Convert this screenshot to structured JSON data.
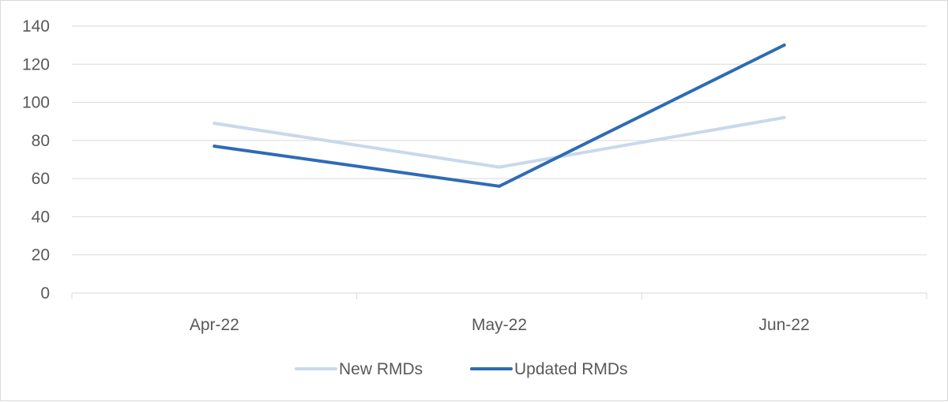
{
  "chart_data": {
    "type": "line",
    "categories": [
      "Apr-22",
      "May-22",
      "Jun-22"
    ],
    "series": [
      {
        "name": "New RMDs",
        "values": [
          89,
          66,
          92
        ],
        "color": "#c9d8ec"
      },
      {
        "name": "Updated RMDs",
        "values": [
          77,
          56,
          130
        ],
        "color": "#2e6bb5"
      }
    ],
    "ylim": [
      0,
      140
    ],
    "yticks": [
      0,
      20,
      40,
      60,
      80,
      100,
      120,
      140
    ],
    "grid": true,
    "legend": "bottom",
    "title": "",
    "xlabel": "",
    "ylabel": ""
  }
}
